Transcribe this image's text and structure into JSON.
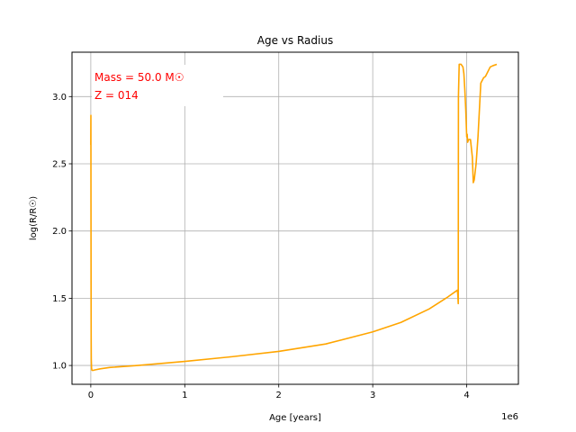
{
  "chart_data": {
    "type": "line",
    "title": "Age vs Radius",
    "xlabel": "Age [years]",
    "ylabel": "log(R/R☉)",
    "x_offset_label": "1e6",
    "xlim": [
      -0.2,
      4.55
    ],
    "ylim": [
      0.86,
      3.33
    ],
    "x_ticks": [
      0,
      1,
      2,
      3,
      4
    ],
    "x_tick_labels": [
      "0",
      "1",
      "2",
      "3",
      "4"
    ],
    "y_ticks": [
      1.0,
      1.5,
      2.0,
      2.5,
      3.0
    ],
    "y_tick_labels": [
      "1.0",
      "1.5",
      "2.0",
      "2.5",
      "3.0"
    ],
    "grid": true,
    "annotation": {
      "lines": [
        "Mass = 50.0 M☉",
        "Z = 014"
      ],
      "color": "#ff0000",
      "placement": "top-left"
    },
    "series": [
      {
        "color": "#ffa500",
        "x": [
          0.0,
          0.001,
          0.002,
          0.003,
          0.004,
          0.005,
          0.008,
          0.012,
          0.02,
          0.05,
          0.1,
          0.2,
          0.5,
          1.0,
          1.5,
          2.0,
          2.5,
          3.0,
          3.3,
          3.6,
          3.8,
          3.88,
          3.9,
          3.905,
          3.91,
          3.912,
          3.92,
          3.94,
          3.96,
          3.97,
          3.98,
          3.99,
          4.0,
          4.005,
          4.01,
          4.02,
          4.04,
          4.06,
          4.07,
          4.08,
          4.1,
          4.12,
          4.15,
          4.18,
          4.2,
          4.25,
          4.28,
          4.32
        ],
        "y": [
          2.64,
          2.86,
          2.2,
          1.6,
          1.2,
          1.05,
          0.98,
          0.965,
          0.963,
          0.968,
          0.975,
          0.985,
          1.0,
          1.03,
          1.065,
          1.105,
          1.16,
          1.25,
          1.32,
          1.42,
          1.51,
          1.55,
          1.56,
          1.53,
          1.46,
          3.0,
          3.24,
          3.24,
          3.22,
          3.17,
          3.05,
          2.9,
          2.7,
          2.72,
          2.66,
          2.68,
          2.68,
          2.55,
          2.36,
          2.38,
          2.5,
          2.7,
          3.1,
          3.14,
          3.15,
          3.22,
          3.23,
          3.24
        ]
      }
    ]
  }
}
